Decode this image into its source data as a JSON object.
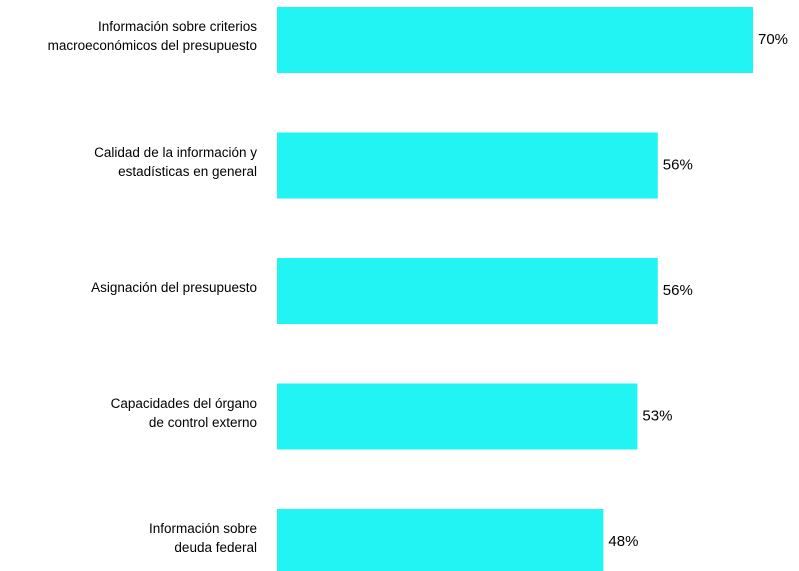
{
  "chart_data": {
    "type": "bar",
    "orientation": "horizontal",
    "categories": [
      "Información sobre criterios\nmacroeconómicos del presupuesto",
      "Calidad de la información y\nestadísticas en general",
      "Asignación del presupuesto",
      "Capacidades del órgano\nde control externo",
      "Información sobre\ndeuda federal"
    ],
    "values": [
      70,
      56,
      56,
      53,
      48
    ],
    "value_labels": [
      "70%",
      "56%",
      "56%",
      "53%",
      "48%"
    ],
    "color": "#22f3f3"
  }
}
